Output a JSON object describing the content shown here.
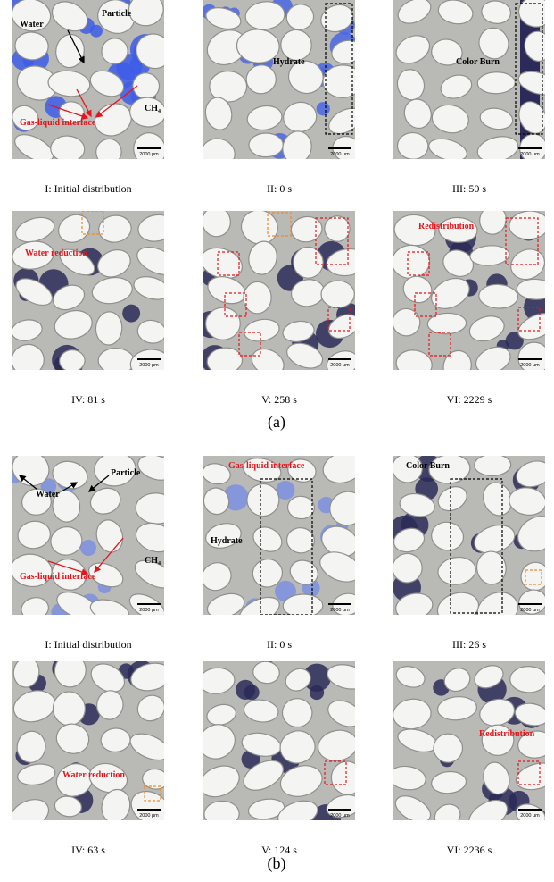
{
  "scale_bar": "2000 μm",
  "panels": [
    {
      "label": "(a)",
      "images": [
        {
          "caption": "I: Initial distribution",
          "annotations": [
            "Water",
            "Particle",
            "CH₄",
            "Gas-liquid interface"
          ]
        },
        {
          "caption": "II: 0 s",
          "annotations": [
            "Hydrate"
          ]
        },
        {
          "caption": "III: 50 s",
          "annotations": [
            "Color Burn"
          ]
        },
        {
          "caption": "IV: 81 s",
          "annotations": [
            "Water reduction"
          ]
        },
        {
          "caption": "V: 258 s",
          "annotations": []
        },
        {
          "caption": "VI: 2229 s",
          "annotations": [
            "Redistribution"
          ]
        }
      ]
    },
    {
      "label": "(b)",
      "images": [
        {
          "caption": "I: Initial distribution",
          "annotations": [
            "Particle",
            "Water",
            "Gas-liquid interface",
            "CH₄"
          ]
        },
        {
          "caption": "II: 0 s",
          "annotations": [
            "Gas-liquid interface",
            "Hydrate"
          ]
        },
        {
          "caption": "III: 26 s",
          "annotations": [
            "Color Burn"
          ]
        },
        {
          "caption": "IV: 63 s",
          "annotations": [
            "Water reduction"
          ]
        },
        {
          "caption": "V: 124 s",
          "annotations": []
        },
        {
          "caption": "VI: 2236 s",
          "annotations": [
            "Redistribution"
          ]
        }
      ]
    }
  ]
}
